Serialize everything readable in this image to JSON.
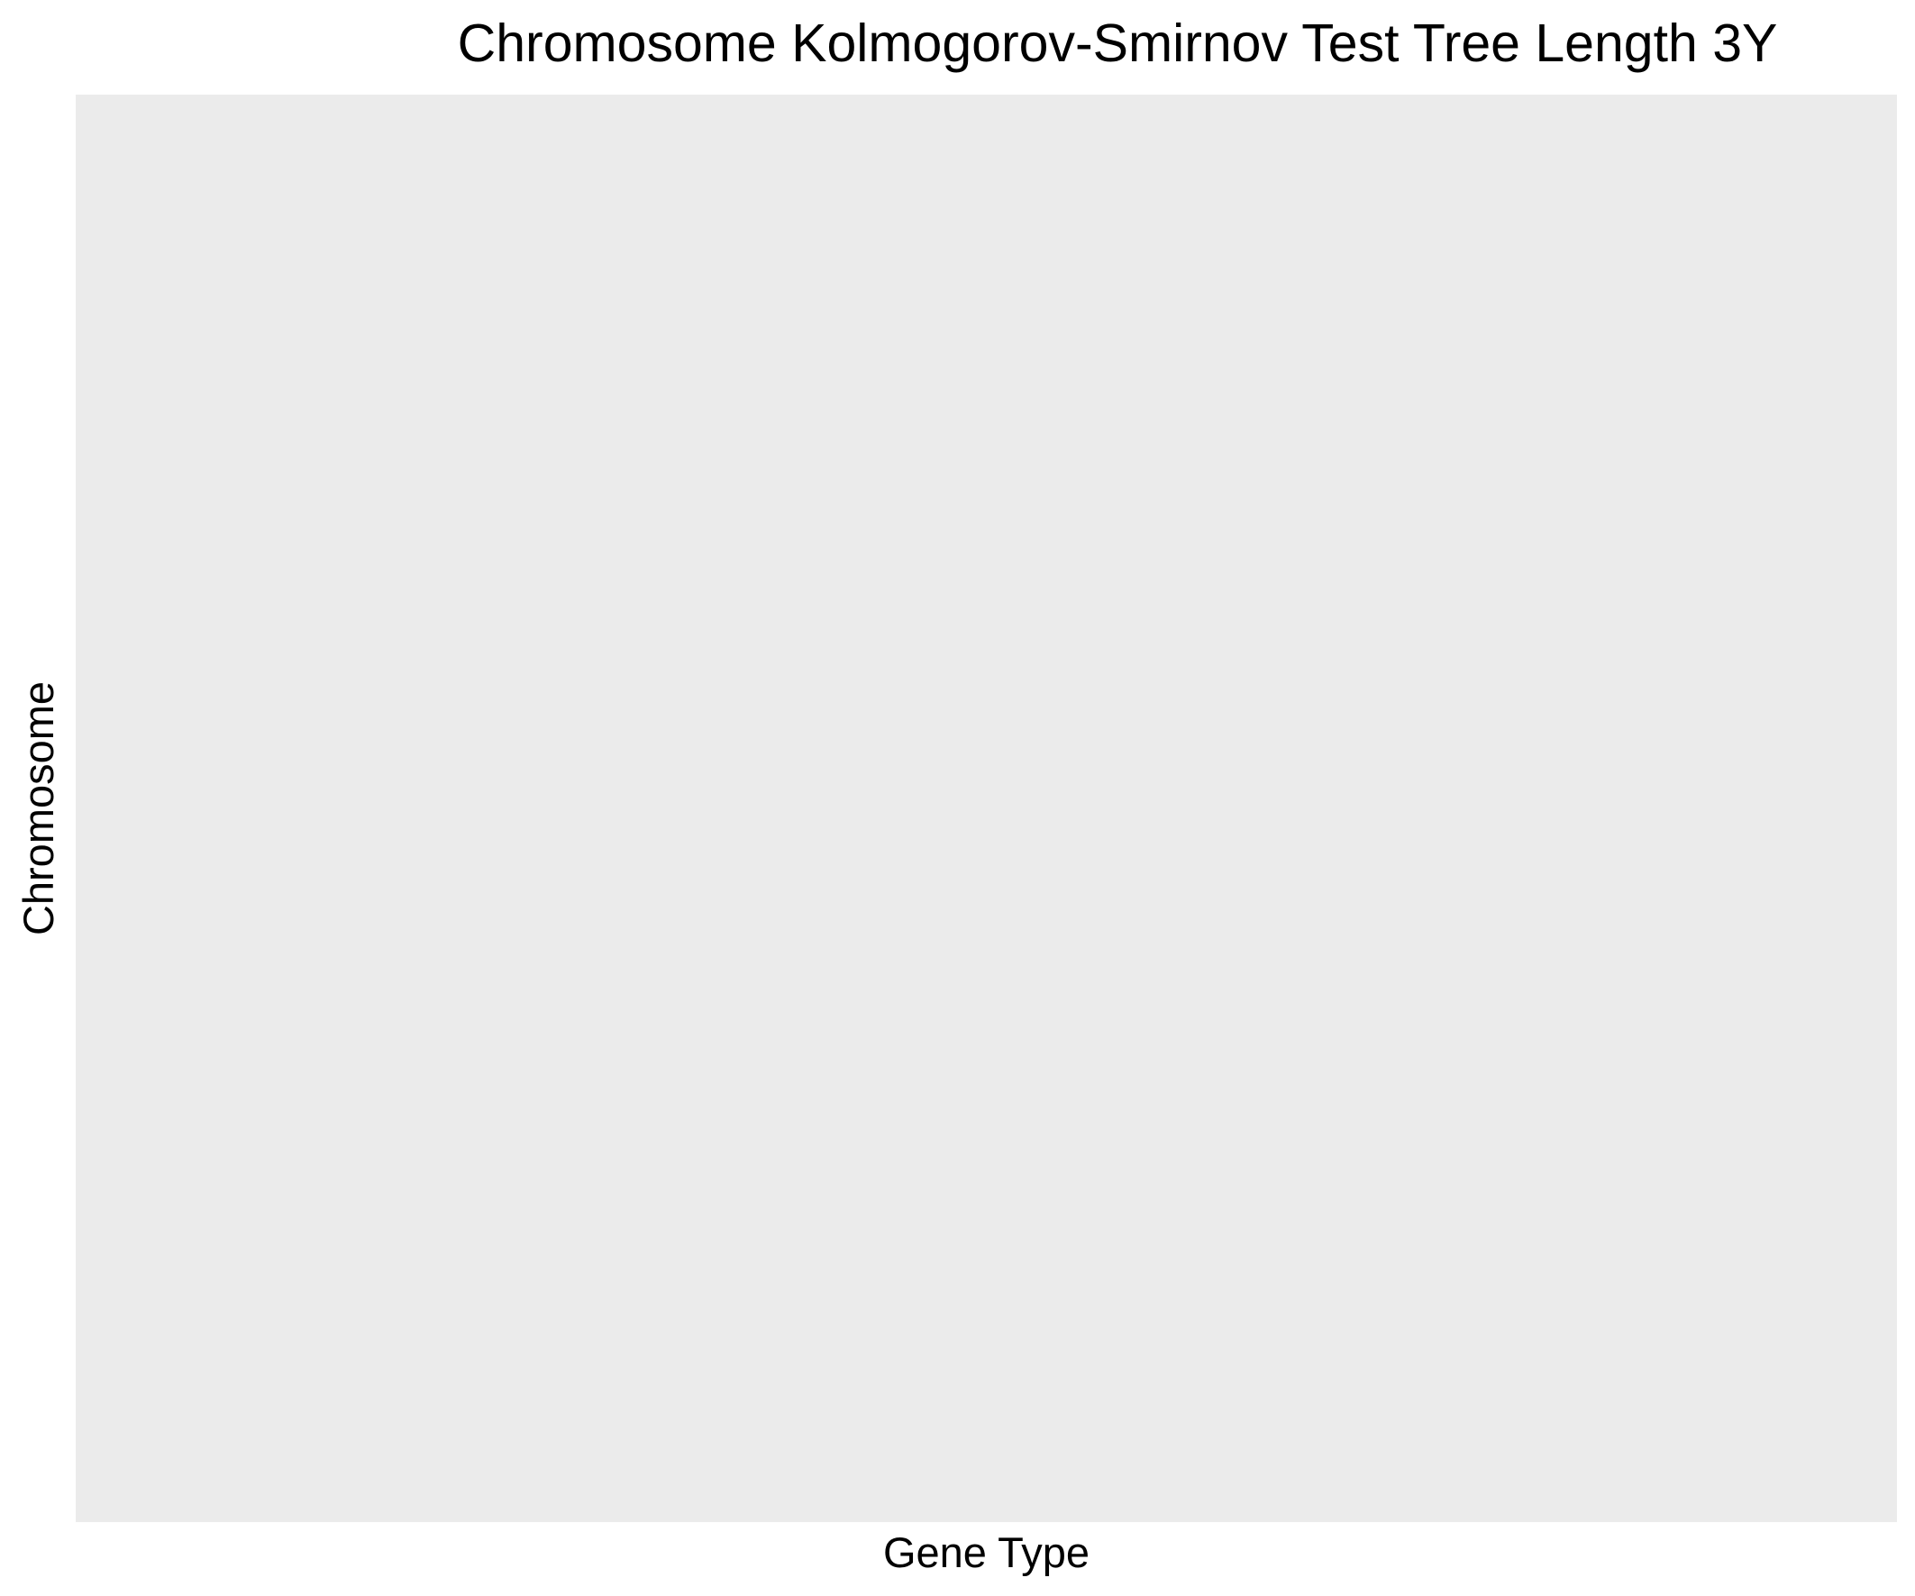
{
  "chart_data": {
    "type": "heatmap",
    "title": "Chromosome Kolmogorov-Smirnov Test Tree Length 3Y",
    "xlabel": "Gene Type",
    "ylabel": "Chromosome",
    "categories_x": [],
    "categories_y": [],
    "values": [],
    "legend": "none",
    "grid": false,
    "panel_background": "#ebebeb"
  }
}
